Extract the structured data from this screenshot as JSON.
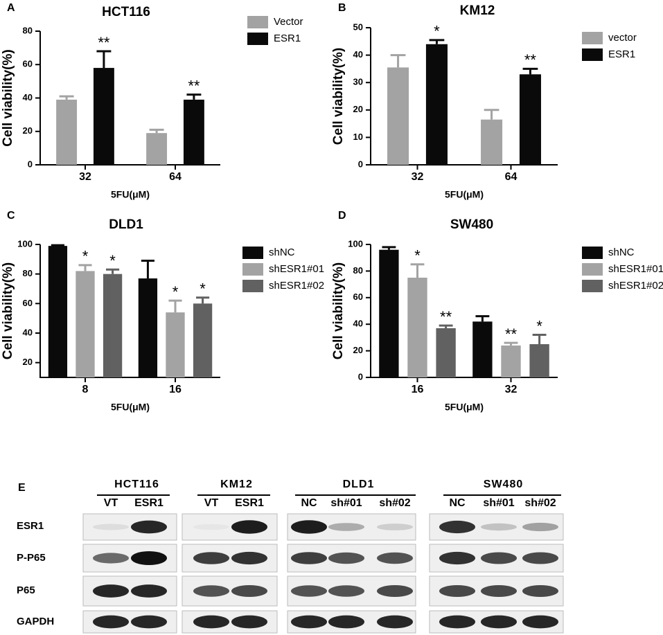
{
  "chart_data": [
    {
      "type": "bar",
      "label": "A",
      "title": "HCT116",
      "x_label": "5FU(μM)",
      "y_label": "Cell viability(%)",
      "categories": [
        "32",
        "64"
      ],
      "ylim": [
        0,
        80
      ],
      "yticks": [
        0,
        20,
        40,
        60,
        80
      ],
      "legend": "right",
      "series": [
        {
          "name": "Vector",
          "color": "#a3a3a3",
          "values": [
            39,
            19
          ],
          "errors": [
            2,
            2
          ]
        },
        {
          "name": "ESR1",
          "color": "#0a0a0a",
          "values": [
            58,
            39
          ],
          "errors": [
            10,
            3
          ],
          "annotations": [
            "**",
            "**"
          ]
        }
      ]
    },
    {
      "type": "bar",
      "label": "B",
      "title": "KM12",
      "x_label": "5FU(μM)",
      "y_label": "Cell viability(%)",
      "categories": [
        "32",
        "64"
      ],
      "ylim": [
        0,
        50
      ],
      "yticks": [
        0,
        10,
        20,
        30,
        40,
        50
      ],
      "legend": "right",
      "series": [
        {
          "name": "vector",
          "color": "#a3a3a3",
          "values": [
            35.5,
            16.5
          ],
          "errors": [
            4.5,
            3.5
          ]
        },
        {
          "name": "ESR1",
          "color": "#0a0a0a",
          "values": [
            44,
            33
          ],
          "errors": [
            1.5,
            2
          ],
          "annotations": [
            "*",
            "**"
          ]
        }
      ]
    },
    {
      "type": "bar",
      "label": "C",
      "title": "DLD1",
      "x_label": "5FU(μM)",
      "y_label": "Cell viability(%)",
      "categories": [
        "8",
        "16"
      ],
      "ylim": [
        10,
        100
      ],
      "yticks": [
        20,
        40,
        60,
        80,
        100
      ],
      "legend": "right",
      "series": [
        {
          "name": "shNC",
          "color": "#0a0a0a",
          "values": [
            99,
            77
          ],
          "errors": [
            0.5,
            12
          ]
        },
        {
          "name": "shESR1#01",
          "color": "#a3a3a3",
          "values": [
            82,
            54
          ],
          "errors": [
            4,
            8
          ],
          "annotations": [
            "*",
            "*"
          ]
        },
        {
          "name": "shESR1#02",
          "color": "#616161",
          "values": [
            80,
            60
          ],
          "errors": [
            3,
            4
          ],
          "annotations": [
            "*",
            "*"
          ]
        }
      ]
    },
    {
      "type": "bar",
      "label": "D",
      "title": "SW480",
      "x_label": "5FU(μM)",
      "y_label": "Cell viability(%)",
      "categories": [
        "16",
        "32"
      ],
      "ylim": [
        0,
        100
      ],
      "yticks": [
        0,
        20,
        40,
        60,
        80,
        100
      ],
      "legend": "right",
      "series": [
        {
          "name": "shNC",
          "color": "#0a0a0a",
          "values": [
            96,
            42
          ],
          "errors": [
            2,
            4
          ]
        },
        {
          "name": "shESR1#01",
          "color": "#a3a3a3",
          "values": [
            75,
            24
          ],
          "errors": [
            10,
            2
          ],
          "annotations": [
            "*",
            "**"
          ]
        },
        {
          "name": "shESR1#02",
          "color": "#616161",
          "values": [
            37,
            25
          ],
          "errors": [
            2,
            7
          ],
          "annotations": [
            "**",
            "*"
          ]
        }
      ]
    }
  ],
  "blot": {
    "label": "E",
    "rows": [
      "ESR1",
      "P-P65",
      "P65",
      "GAPDH"
    ],
    "groups": [
      {
        "name": "HCT116",
        "lanes": [
          "VT",
          "ESR1"
        ]
      },
      {
        "name": "KM12",
        "lanes": [
          "VT",
          "ESR1"
        ]
      },
      {
        "name": "DLD1",
        "lanes": [
          "NC",
          "sh#01",
          "sh#02"
        ]
      },
      {
        "name": "SW480",
        "lanes": [
          "NC",
          "sh#01",
          "sh#02"
        ]
      }
    ]
  }
}
